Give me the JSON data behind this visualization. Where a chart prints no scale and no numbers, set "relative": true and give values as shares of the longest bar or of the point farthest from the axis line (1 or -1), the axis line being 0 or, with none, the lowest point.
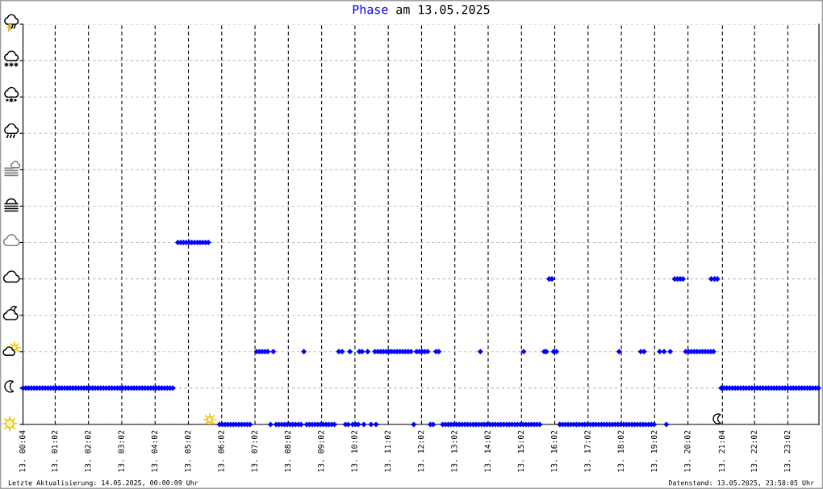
{
  "chart_data": {
    "type": "scatter",
    "title": "am 13.05.2025",
    "annotations": [
      "Letzte Aktualisierung: 14.05.2025, 00:00:09 Uhr",
      "Datenstand: 13.05.2025, 23:58:05 Uhr"
    ],
    "relative": true,
    "marker": "diamond",
    "grid": true,
    "tick_labels": "x",
    "xlim": [
      "2025-05-13T00:04",
      "2025-05-13T23:58"
    ],
    "xticks": [
      {
        "value": "2025-05-13T00:04",
        "label": "13. 00:04"
      },
      {
        "value": "2025-05-13T01:02",
        "label": "13. 01:02"
      },
      {
        "value": "2025-05-13T02:02",
        "label": "13. 02:02"
      },
      {
        "value": "2025-05-13T03:02",
        "label": "13. 03:02"
      },
      {
        "value": "2025-05-13T04:02",
        "label": "13. 04:02"
      },
      {
        "value": "2025-05-13T05:02",
        "label": "13. 05:02"
      },
      {
        "value": "2025-05-13T06:02",
        "label": "13. 06:02"
      },
      {
        "value": "2025-05-13T07:02",
        "label": "13. 07:02"
      },
      {
        "value": "2025-05-13T08:02",
        "label": "13. 08:02"
      },
      {
        "value": "2025-05-13T09:02",
        "label": "13. 09:02"
      },
      {
        "value": "2025-05-13T10:02",
        "label": "13. 10:02"
      },
      {
        "value": "2025-05-13T11:02",
        "label": "13. 11:02"
      },
      {
        "value": "2025-05-13T12:02",
        "label": "13. 12:02"
      },
      {
        "value": "2025-05-13T13:02",
        "label": "13. 13:02"
      },
      {
        "value": "2025-05-13T14:02",
        "label": "13. 14:02"
      },
      {
        "value": "2025-05-13T15:02",
        "label": "13. 15:02"
      },
      {
        "value": "2025-05-13T16:02",
        "label": "13. 16:02"
      },
      {
        "value": "2025-05-13T17:02",
        "label": "13. 17:02"
      },
      {
        "value": "2025-05-13T18:02",
        "label": "13. 18:02"
      },
      {
        "value": "2025-05-13T19:02",
        "label": "13. 19:02"
      },
      {
        "value": "2025-05-13T20:02",
        "label": "13. 20:02"
      },
      {
        "value": "2025-05-13T21:04",
        "label": "13. 21:04"
      },
      {
        "value": "2025-05-13T22:02",
        "label": "13. 22:02"
      },
      {
        "value": "2025-05-13T23:02",
        "label": "13. 23:02"
      }
    ],
    "x": [
      "2025-05-13T00:04",
      "2025-05-13T00:09",
      "2025-05-13T00:14",
      "2025-05-13T00:19",
      "2025-05-13T00:24",
      "2025-05-13T00:29",
      "2025-05-13T00:34",
      "2025-05-13T00:39",
      "2025-05-13T00:44",
      "2025-05-13T00:49",
      "2025-05-13T00:54",
      "2025-05-13T00:59",
      "2025-05-13T01:04",
      "2025-05-13T01:09",
      "2025-05-13T01:14",
      "2025-05-13T01:19",
      "2025-05-13T01:24",
      "2025-05-13T01:29",
      "2025-05-13T01:34",
      "2025-05-13T01:39",
      "2025-05-13T01:44",
      "2025-05-13T01:49",
      "2025-05-13T01:54",
      "2025-05-13T01:59",
      "2025-05-13T02:04",
      "2025-05-13T02:09",
      "2025-05-13T02:14",
      "2025-05-13T02:19",
      "2025-05-13T02:24",
      "2025-05-13T02:29",
      "2025-05-13T02:34",
      "2025-05-13T02:39",
      "2025-05-13T02:44",
      "2025-05-13T02:49",
      "2025-05-13T02:54",
      "2025-05-13T02:59",
      "2025-05-13T03:04",
      "2025-05-13T03:09",
      "2025-05-13T03:14",
      "2025-05-13T03:19",
      "2025-05-13T03:24",
      "2025-05-13T03:29",
      "2025-05-13T03:34",
      "2025-05-13T03:39",
      "2025-05-13T03:44",
      "2025-05-13T03:49",
      "2025-05-13T03:54",
      "2025-05-13T03:59",
      "2025-05-13T04:04",
      "2025-05-13T04:09",
      "2025-05-13T04:14",
      "2025-05-13T04:19",
      "2025-05-13T04:24",
      "2025-05-13T04:29",
      "2025-05-13T04:34",
      "2025-05-13T04:43",
      "2025-05-13T04:48",
      "2025-05-13T04:53",
      "2025-05-13T04:58",
      "2025-05-13T05:03",
      "2025-05-13T05:08",
      "2025-05-13T05:13",
      "2025-05-13T05:18",
      "2025-05-13T05:23",
      "2025-05-13T05:28",
      "2025-05-13T05:33",
      "2025-05-13T05:38",
      "2025-05-13T05:58",
      "2025-05-13T06:03",
      "2025-05-13T06:08",
      "2025-05-13T06:13",
      "2025-05-13T06:18",
      "2025-05-13T06:23",
      "2025-05-13T06:28",
      "2025-05-13T06:33",
      "2025-05-13T06:38",
      "2025-05-13T06:43",
      "2025-05-13T06:48",
      "2025-05-13T06:53",
      "2025-05-13T07:05",
      "2025-05-13T07:10",
      "2025-05-13T07:15",
      "2025-05-13T07:20",
      "2025-05-13T07:25",
      "2025-05-13T07:35",
      "2025-05-13T08:30",
      "2025-05-13T07:30",
      "2025-05-13T07:40",
      "2025-05-13T07:45",
      "2025-05-13T07:50",
      "2025-05-13T07:55",
      "2025-05-13T08:00",
      "2025-05-13T08:05",
      "2025-05-13T08:10",
      "2025-05-13T08:15",
      "2025-05-13T08:20",
      "2025-05-13T08:25",
      "2025-05-13T08:35",
      "2025-05-13T08:40",
      "2025-05-13T08:45",
      "2025-05-13T08:50",
      "2025-05-13T08:55",
      "2025-05-13T09:00",
      "2025-05-13T09:05",
      "2025-05-13T09:10",
      "2025-05-13T09:15",
      "2025-05-13T09:20",
      "2025-05-13T09:25",
      "2025-05-13T09:33",
      "2025-05-13T09:39",
      "2025-05-13T09:53",
      "2025-05-13T10:10",
      "2025-05-13T10:15",
      "2025-05-13T10:25",
      "2025-05-13T09:45",
      "2025-05-13T09:50",
      "2025-05-13T09:58",
      "2025-05-13T10:03",
      "2025-05-13T10:08",
      "2025-05-13T10:18",
      "2025-05-13T10:31",
      "2025-05-13T10:40",
      "2025-05-13T10:38",
      "2025-05-13T10:43",
      "2025-05-13T10:48",
      "2025-05-13T10:53",
      "2025-05-13T10:58",
      "2025-05-13T11:03",
      "2025-05-13T11:08",
      "2025-05-13T11:13",
      "2025-05-13T11:18",
      "2025-05-13T11:23",
      "2025-05-13T11:28",
      "2025-05-13T11:33",
      "2025-05-13T11:38",
      "2025-05-13T11:43",
      "2025-05-13T11:53",
      "2025-05-13T11:58",
      "2025-05-13T12:03",
      "2025-05-13T12:08",
      "2025-05-13T12:13",
      "2025-05-13T12:28",
      "2025-05-13T12:33",
      "2025-05-13T11:48",
      "2025-05-13T12:18",
      "2025-05-13T12:23",
      "2025-05-13T12:40",
      "2025-05-13T12:45",
      "2025-05-13T12:50",
      "2025-05-13T12:55",
      "2025-05-13T13:00",
      "2025-05-13T13:05",
      "2025-05-13T13:10",
      "2025-05-13T13:15",
      "2025-05-13T13:20",
      "2025-05-13T13:25",
      "2025-05-13T13:30",
      "2025-05-13T13:35",
      "2025-05-13T13:40",
      "2025-05-13T13:45",
      "2025-05-13T13:50",
      "2025-05-13T13:55",
      "2025-05-13T14:00",
      "2025-05-13T14:05",
      "2025-05-13T14:10",
      "2025-05-13T14:15",
      "2025-05-13T14:20",
      "2025-05-13T14:25",
      "2025-05-13T14:30",
      "2025-05-13T14:35",
      "2025-05-13T14:40",
      "2025-05-13T14:45",
      "2025-05-13T14:50",
      "2025-05-13T14:55",
      "2025-05-13T15:00",
      "2025-05-13T15:05",
      "2025-05-13T15:10",
      "2025-05-13T15:15",
      "2025-05-13T15:20",
      "2025-05-13T15:25",
      "2025-05-13T15:30",
      "2025-05-13T15:35",
      "2025-05-13T13:48",
      "2025-05-13T15:06",
      "2025-05-13T15:43",
      "2025-05-13T15:47",
      "2025-05-13T16:00",
      "2025-05-13T16:05",
      "2025-05-13T15:52",
      "2025-05-13T15:57",
      "2025-05-13T16:11",
      "2025-05-13T16:16",
      "2025-05-13T16:21",
      "2025-05-13T16:26",
      "2025-05-13T16:31",
      "2025-05-13T16:36",
      "2025-05-13T16:41",
      "2025-05-13T16:46",
      "2025-05-13T16:51",
      "2025-05-13T16:56",
      "2025-05-13T17:01",
      "2025-05-13T17:06",
      "2025-05-13T17:11",
      "2025-05-13T17:16",
      "2025-05-13T17:21",
      "2025-05-13T17:26",
      "2025-05-13T17:31",
      "2025-05-13T17:36",
      "2025-05-13T17:41",
      "2025-05-13T17:46",
      "2025-05-13T17:51",
      "2025-05-13T17:56",
      "2025-05-13T18:01",
      "2025-05-13T18:06",
      "2025-05-13T18:11",
      "2025-05-13T18:16",
      "2025-05-13T18:21",
      "2025-05-13T18:26",
      "2025-05-13T18:31",
      "2025-05-13T18:36",
      "2025-05-13T18:41",
      "2025-05-13T18:46",
      "2025-05-13T18:51",
      "2025-05-13T18:56",
      "2025-05-13T19:01",
      "2025-05-13T17:58",
      "2025-05-13T18:37",
      "2025-05-13T18:43",
      "2025-05-13T19:23",
      "2025-05-13T19:11",
      "2025-05-13T19:19",
      "2025-05-13T19:30",
      "2025-05-13T19:38",
      "2025-05-13T19:43",
      "2025-05-13T19:48",
      "2025-05-13T19:53",
      "2025-05-13T19:58",
      "2025-05-13T20:03",
      "2025-05-13T20:08",
      "2025-05-13T20:13",
      "2025-05-13T20:18",
      "2025-05-13T20:23",
      "2025-05-13T20:28",
      "2025-05-13T20:33",
      "2025-05-13T20:38",
      "2025-05-13T20:43",
      "2025-05-13T20:48",
      "2025-05-13T20:44",
      "2025-05-13T20:50",
      "2025-05-13T20:55",
      "2025-05-13T21:02",
      "2025-05-13T21:07",
      "2025-05-13T21:12",
      "2025-05-13T21:17",
      "2025-05-13T21:22",
      "2025-05-13T21:27",
      "2025-05-13T21:32",
      "2025-05-13T21:37",
      "2025-05-13T21:42",
      "2025-05-13T21:47",
      "2025-05-13T21:52",
      "2025-05-13T21:57",
      "2025-05-13T22:02",
      "2025-05-13T22:07",
      "2025-05-13T22:12",
      "2025-05-13T22:17",
      "2025-05-13T22:22",
      "2025-05-13T22:27",
      "2025-05-13T22:32",
      "2025-05-13T22:37",
      "2025-05-13T22:42",
      "2025-05-13T22:47",
      "2025-05-13T22:52",
      "2025-05-13T22:57",
      "2025-05-13T23:02",
      "2025-05-13T23:07",
      "2025-05-13T23:12",
      "2025-05-13T23:17",
      "2025-05-13T23:22",
      "2025-05-13T23:27",
      "2025-05-13T23:32",
      "2025-05-13T23:37",
      "2025-05-13T23:42",
      "2025-05-13T23:47",
      "2025-05-13T23:52",
      "2025-05-13T23:57"
    ],
    "series": [
      {
        "name": "Phase",
        "color": "#0000ff",
        "values": [
          0.2,
          0.2,
          0.2,
          0.2,
          0.2,
          0.2,
          0.2,
          0.2,
          0.2,
          0.2,
          0.2,
          0.2,
          0.2,
          0.2,
          0.2,
          0.2,
          0.2,
          0.2,
          0.2,
          0.2,
          0.2,
          0.2,
          0.2,
          0.2,
          0.2,
          0.2,
          0.2,
          0.2,
          0.2,
          0.2,
          0.2,
          0.2,
          0.2,
          0.2,
          0.2,
          0.2,
          0.2,
          0.2,
          0.2,
          0.2,
          0.2,
          0.2,
          0.2,
          0.2,
          0.2,
          0.2,
          0.2,
          0.2,
          0.2,
          0.2,
          0.2,
          0.2,
          0.2,
          0.2,
          0.2,
          1,
          1,
          1,
          1,
          1,
          1,
          1,
          1,
          1,
          1,
          1,
          1,
          0,
          0,
          0,
          0,
          0,
          0,
          0,
          0,
          0,
          0,
          0,
          0,
          0.4,
          0.4,
          0.4,
          0.4,
          0.4,
          0.4,
          0.4,
          0,
          0,
          0,
          0,
          0,
          0,
          0,
          0,
          0,
          0,
          0,
          0,
          0,
          0,
          0,
          0,
          0,
          0,
          0,
          0,
          0,
          0,
          0.4,
          0.4,
          0.4,
          0.4,
          0.4,
          0.4,
          0,
          0,
          0,
          0,
          0,
          0,
          0,
          0,
          0.4,
          0.4,
          0.4,
          0.4,
          0.4,
          0.4,
          0.4,
          0.4,
          0.4,
          0.4,
          0.4,
          0.4,
          0.4,
          0.4,
          0.4,
          0.4,
          0.4,
          0.4,
          0.4,
          0.4,
          0.4,
          0,
          0,
          0,
          0,
          0,
          0,
          0,
          0,
          0,
          0,
          0,
          0,
          0,
          0,
          0,
          0,
          0,
          0,
          0,
          0,
          0,
          0,
          0,
          0,
          0,
          0,
          0,
          0,
          0,
          0,
          0,
          0,
          0,
          0,
          0,
          0,
          0,
          0,
          0,
          0.4,
          0.4,
          0.4,
          0.4,
          0.4,
          0.4,
          0.8,
          0.8,
          0,
          0,
          0,
          0,
          0,
          0,
          0,
          0,
          0,
          0,
          0,
          0,
          0,
          0,
          0,
          0,
          0,
          0,
          0,
          0,
          0,
          0,
          0,
          0,
          0,
          0,
          0,
          0,
          0,
          0,
          0,
          0,
          0,
          0,
          0,
          0.4,
          0.4,
          0.4,
          0,
          0.4,
          0.4,
          0.4,
          0.8,
          0.8,
          0.8,
          0.8,
          0.4,
          0.4,
          0.4,
          0.4,
          0.4,
          0.4,
          0.4,
          0.4,
          0.4,
          0.4,
          0.4,
          0.8,
          0.8,
          0.8,
          0.2,
          0.2,
          0.2,
          0.2,
          0.2,
          0.2,
          0.2,
          0.2,
          0.2,
          0.2,
          0.2,
          0.2,
          0.2,
          0.2,
          0.2,
          0.2,
          0.2,
          0.2,
          0.2,
          0.2,
          0.2,
          0.2,
          0.2,
          0.2,
          0.2,
          0.2,
          0.2,
          0.2,
          0.2,
          0.2,
          0.2,
          0.2,
          0.2,
          0.2,
          0.2,
          0.2
        ]
      }
    ]
  }
}
